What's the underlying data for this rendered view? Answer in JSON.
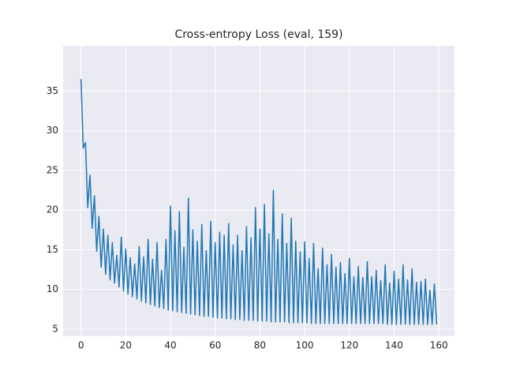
{
  "chart_data": {
    "type": "line",
    "title": "Cross-entropy Loss (eval, 159)",
    "x": [
      0,
      1,
      2,
      3,
      4,
      5,
      6,
      7,
      8,
      9,
      10,
      11,
      12,
      13,
      14,
      15,
      16,
      17,
      18,
      19,
      20,
      21,
      22,
      23,
      24,
      25,
      26,
      27,
      28,
      29,
      30,
      31,
      32,
      33,
      34,
      35,
      36,
      37,
      38,
      39,
      40,
      41,
      42,
      43,
      44,
      45,
      46,
      47,
      48,
      49,
      50,
      51,
      52,
      53,
      54,
      55,
      56,
      57,
      58,
      59,
      60,
      61,
      62,
      63,
      64,
      65,
      66,
      67,
      68,
      69,
      70,
      71,
      72,
      73,
      74,
      75,
      76,
      77,
      78,
      79,
      80,
      81,
      82,
      83,
      84,
      85,
      86,
      87,
      88,
      89,
      90,
      91,
      92,
      93,
      94,
      95,
      96,
      97,
      98,
      99,
      100,
      101,
      102,
      103,
      104,
      105,
      106,
      107,
      108,
      109,
      110,
      111,
      112,
      113,
      114,
      115,
      116,
      117,
      118,
      119,
      120,
      121,
      122,
      123,
      124,
      125,
      126,
      127,
      128,
      129,
      130,
      131,
      132,
      133,
      134,
      135,
      136,
      137,
      138,
      139,
      140,
      141,
      142,
      143,
      144,
      145,
      146,
      147,
      148,
      149,
      150,
      151,
      152,
      153,
      154,
      155,
      156,
      157,
      158,
      159
    ],
    "series": [
      {
        "color": "#1f77b4",
        "values": [
          36.5,
          27.8,
          28.5,
          20.3,
          24.4,
          17.7,
          21.8,
          14.8,
          19.2,
          12.8,
          17.6,
          11.9,
          16.8,
          11.2,
          15.9,
          10.8,
          14.3,
          10.3,
          16.6,
          9.8,
          15.1,
          9.4,
          14.0,
          9.1,
          13.2,
          8.8,
          15.4,
          8.5,
          14.1,
          8.3,
          16.3,
          8.1,
          13.8,
          7.9,
          15.9,
          7.7,
          12.4,
          7.6,
          16.3,
          7.4,
          20.5,
          7.3,
          17.4,
          7.2,
          19.8,
          7.1,
          15.3,
          7.0,
          21.5,
          6.9,
          17.5,
          6.8,
          16.1,
          6.7,
          18.2,
          6.6,
          14.9,
          6.6,
          18.6,
          6.5,
          15.9,
          6.4,
          17.2,
          6.4,
          16.8,
          6.3,
          18.3,
          6.3,
          15.6,
          6.2,
          16.8,
          6.2,
          14.9,
          6.1,
          17.9,
          6.1,
          16.5,
          6.1,
          20.3,
          6.0,
          17.6,
          6.0,
          20.7,
          6.0,
          17.0,
          5.9,
          22.5,
          5.9,
          16.3,
          5.9,
          19.5,
          5.9,
          15.8,
          5.8,
          19.0,
          5.8,
          16.1,
          5.8,
          14.7,
          5.8,
          16.0,
          5.8,
          13.9,
          5.7,
          15.8,
          5.7,
          12.6,
          5.7,
          15.2,
          5.7,
          13.1,
          5.7,
          14.4,
          5.7,
          12.8,
          5.7,
          13.4,
          5.7,
          12.0,
          5.7,
          13.9,
          5.7,
          11.6,
          5.7,
          12.9,
          5.7,
          11.5,
          5.7,
          13.5,
          5.7,
          11.6,
          5.7,
          12.4,
          5.7,
          11.1,
          5.7,
          13.1,
          5.6,
          10.8,
          5.6,
          12.3,
          5.6,
          11.3,
          5.6,
          13.1,
          5.6,
          11.2,
          5.6,
          12.6,
          5.6,
          10.9,
          5.6,
          11.0,
          5.6,
          11.3,
          5.6,
          9.9,
          5.6,
          10.7,
          5.6
        ]
      }
    ],
    "xlim": [
      -8,
      167
    ],
    "ylim": [
      4.1,
      40.7
    ],
    "xticks": [
      0,
      20,
      40,
      60,
      80,
      100,
      120,
      140,
      160
    ],
    "yticks": [
      5,
      10,
      15,
      20,
      25,
      30,
      35
    ],
    "grid": true
  }
}
